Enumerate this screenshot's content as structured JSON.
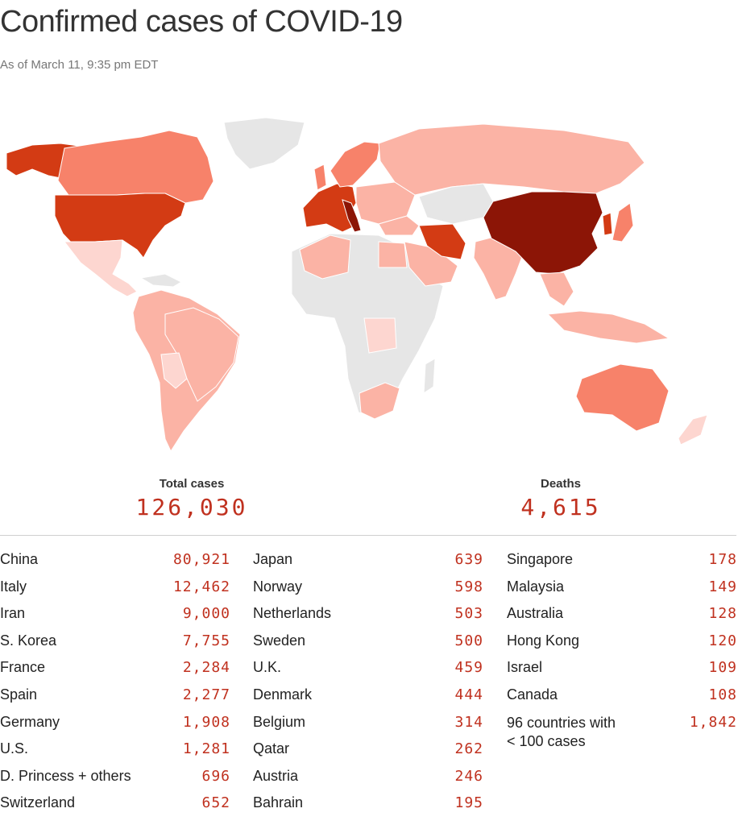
{
  "title": "Confirmed cases of COVID-19",
  "subtitle": "As of March 11, 9:35 pm EDT",
  "totals": {
    "cases_label": "Total cases",
    "cases_value": "126,030",
    "deaths_label": "Deaths",
    "deaths_value": "4,615"
  },
  "colors": {
    "highest": "#8c1506",
    "high": "#d33b14",
    "mid": "#f7826a",
    "low": "#fbb3a5",
    "lowest": "#fdd6d0",
    "none": "#e6e6e6",
    "number_text": "#c0311f"
  },
  "table": {
    "columns": [
      [
        {
          "name": "China",
          "value": "80,921"
        },
        {
          "name": "Italy",
          "value": "12,462"
        },
        {
          "name": "Iran",
          "value": "9,000"
        },
        {
          "name": "S. Korea",
          "value": "7,755"
        },
        {
          "name": "France",
          "value": "2,284"
        },
        {
          "name": "Spain",
          "value": "2,277"
        },
        {
          "name": "Germany",
          "value": "1,908"
        },
        {
          "name": "U.S.",
          "value": "1,281"
        },
        {
          "name": "D. Princess + others",
          "value": "696"
        },
        {
          "name": "Switzerland",
          "value": "652"
        }
      ],
      [
        {
          "name": "Japan",
          "value": "639"
        },
        {
          "name": "Norway",
          "value": "598"
        },
        {
          "name": "Netherlands",
          "value": "503"
        },
        {
          "name": "Sweden",
          "value": "500"
        },
        {
          "name": "U.K.",
          "value": "459"
        },
        {
          "name": "Denmark",
          "value": "444"
        },
        {
          "name": "Belgium",
          "value": "314"
        },
        {
          "name": "Qatar",
          "value": "262"
        },
        {
          "name": "Austria",
          "value": "246"
        },
        {
          "name": "Bahrain",
          "value": "195"
        }
      ],
      [
        {
          "name": "Singapore",
          "value": "178"
        },
        {
          "name": "Malaysia",
          "value": "149"
        },
        {
          "name": "Australia",
          "value": "128"
        },
        {
          "name": "Hong Kong",
          "value": "120"
        },
        {
          "name": "Israel",
          "value": "109"
        },
        {
          "name": "Canada",
          "value": "108"
        },
        {
          "name": "96 countries with < 100 cases",
          "value": "1,842"
        }
      ]
    ]
  }
}
